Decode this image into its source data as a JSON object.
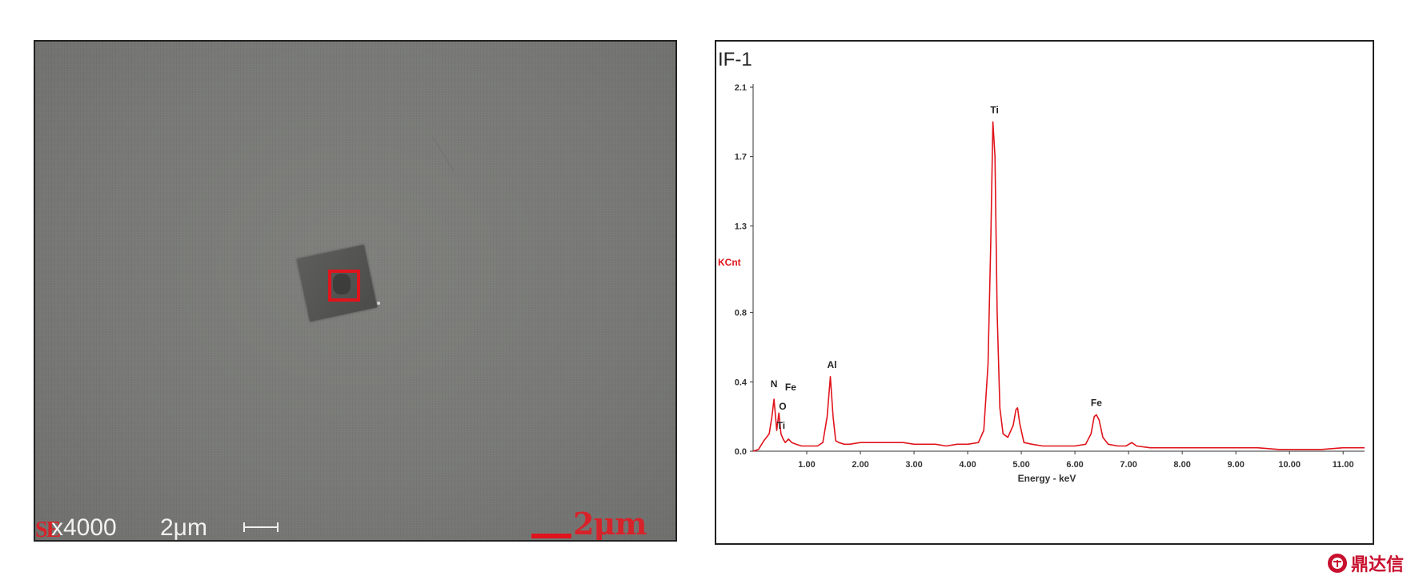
{
  "sem_image": {
    "mag_prefix": "SE",
    "magnification": "x4000",
    "internal_scale_label": "2μm",
    "scale_label": "2μm",
    "roi_color": "#e0141c"
  },
  "chart_data": {
    "type": "line",
    "title": "IF-1",
    "ylabel": "KCnt",
    "xlabel": "Energy - keV",
    "xlim": [
      0,
      11.4
    ],
    "ylim": [
      0,
      2.1
    ],
    "x_ticks": [
      1.0,
      2.0,
      3.0,
      4.0,
      5.0,
      6.0,
      7.0,
      8.0,
      9.0,
      10.0,
      11.0
    ],
    "x_tick_labels": [
      "1.00",
      "2.00",
      "3.00",
      "4.00",
      "5.00",
      "6.00",
      "7.00",
      "8.00",
      "9.00",
      "10.00",
      "11.00"
    ],
    "y_ticks": [
      0.0,
      0.4,
      0.8,
      1.3,
      1.7,
      2.1
    ],
    "y_tick_labels": [
      "0.0",
      "0.4",
      "0.8",
      "1.3",
      "1.7",
      "2.1"
    ],
    "line_color": "#e0141c",
    "series": [
      {
        "x": [
          0.0,
          0.1,
          0.2,
          0.3,
          0.35,
          0.39,
          0.44,
          0.48,
          0.52,
          0.56,
          0.6,
          0.66,
          0.72,
          0.8,
          0.9,
          1.0,
          1.1,
          1.2,
          1.3,
          1.38,
          1.44,
          1.49,
          1.54,
          1.6,
          1.7,
          1.8,
          2.0,
          2.2,
          2.4,
          2.6,
          2.8,
          3.0,
          3.2,
          3.4,
          3.6,
          3.8,
          4.0,
          4.2,
          4.3,
          4.38,
          4.43,
          4.47,
          4.51,
          4.55,
          4.6,
          4.66,
          4.75,
          4.85,
          4.9,
          4.93,
          4.97,
          5.05,
          5.2,
          5.4,
          5.6,
          5.8,
          6.0,
          6.2,
          6.3,
          6.36,
          6.4,
          6.45,
          6.52,
          6.62,
          6.8,
          6.95,
          7.06,
          7.15,
          7.4,
          7.8,
          8.2,
          8.6,
          9.0,
          9.4,
          9.8,
          10.2,
          10.6,
          11.0,
          11.4
        ],
        "y": [
          0.0,
          0.01,
          0.06,
          0.1,
          0.2,
          0.3,
          0.12,
          0.22,
          0.1,
          0.07,
          0.05,
          0.07,
          0.05,
          0.04,
          0.03,
          0.03,
          0.03,
          0.03,
          0.05,
          0.2,
          0.43,
          0.2,
          0.06,
          0.05,
          0.04,
          0.04,
          0.05,
          0.05,
          0.05,
          0.05,
          0.05,
          0.04,
          0.04,
          0.04,
          0.03,
          0.04,
          0.04,
          0.05,
          0.12,
          0.5,
          1.2,
          1.9,
          1.7,
          0.8,
          0.25,
          0.1,
          0.08,
          0.15,
          0.24,
          0.25,
          0.16,
          0.05,
          0.04,
          0.03,
          0.03,
          0.03,
          0.03,
          0.04,
          0.1,
          0.2,
          0.21,
          0.18,
          0.08,
          0.04,
          0.03,
          0.03,
          0.05,
          0.03,
          0.02,
          0.02,
          0.02,
          0.02,
          0.02,
          0.02,
          0.01,
          0.01,
          0.01,
          0.02,
          0.02
        ]
      }
    ],
    "annotations": [
      {
        "text": "N",
        "x": 0.39,
        "y": 0.37
      },
      {
        "text": "Fe",
        "x": 0.7,
        "y": 0.35
      },
      {
        "text": "O",
        "x": 0.55,
        "y": 0.24
      },
      {
        "text": "Ti",
        "x": 0.52,
        "y": 0.13
      },
      {
        "text": "Al",
        "x": 1.47,
        "y": 0.48
      },
      {
        "text": "Ti",
        "x": 4.5,
        "y": 1.95
      },
      {
        "text": "Fe",
        "x": 6.4,
        "y": 0.26
      }
    ]
  },
  "logo": {
    "text": "鼎达信"
  }
}
